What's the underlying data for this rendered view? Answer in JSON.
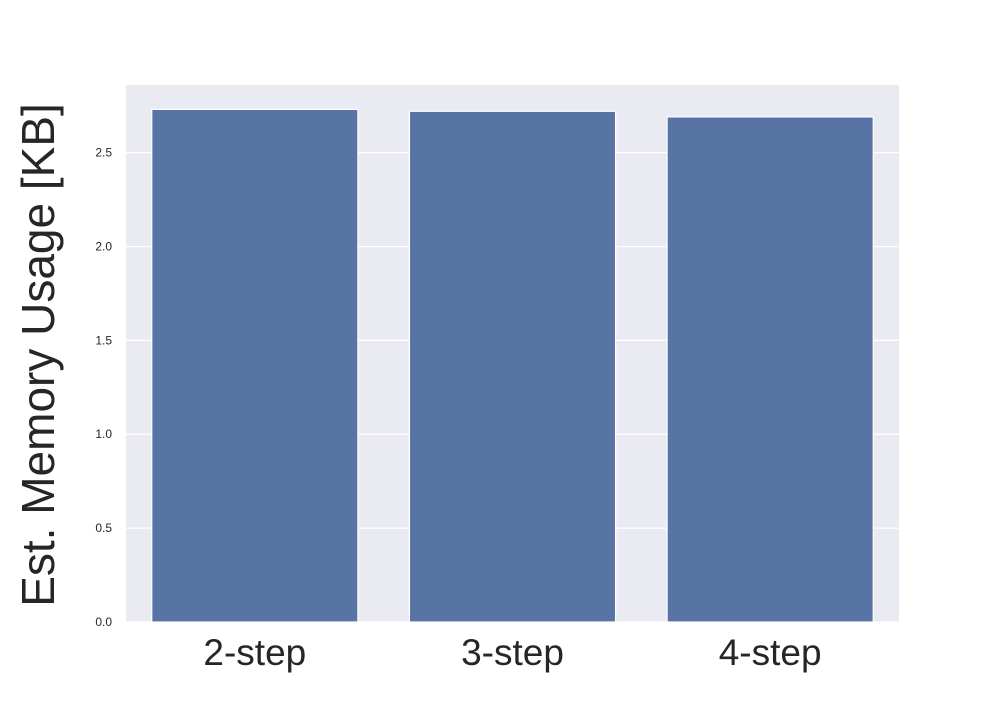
{
  "chart_data": {
    "type": "bar",
    "title": "",
    "xlabel": "",
    "ylabel": "Est. Memory Usage [KB]",
    "categories": [
      "2-step",
      "3-step",
      "4-step"
    ],
    "values": [
      2.73,
      2.72,
      2.69
    ],
    "ylim": [
      0,
      2.86
    ],
    "yticks": [
      0.0,
      0.5,
      1.0,
      1.5,
      2.0,
      2.5
    ],
    "ytick_labels": [
      "0.0",
      "0.5",
      "1.0",
      "1.5",
      "2.0",
      "2.5"
    ],
    "grid": true,
    "legend": "none",
    "colors": {
      "bar": "#5874a4",
      "plot_background": "#eaeaf2",
      "grid": "#ffffff",
      "text": "#262626"
    }
  }
}
